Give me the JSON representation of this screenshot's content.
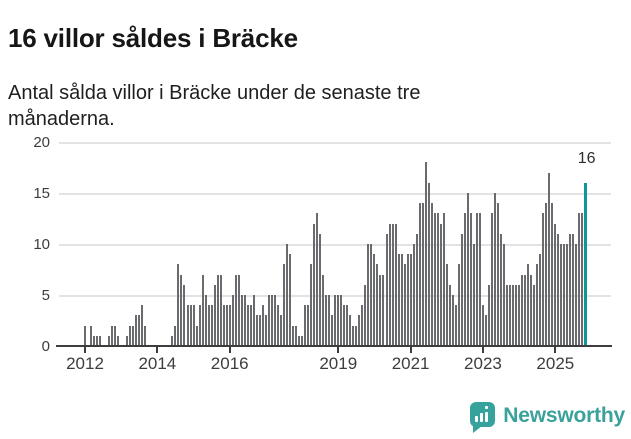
{
  "header": {
    "title": "16 villor såldes i Bräcke",
    "subtitle": "Antal sålda villor i Bräcke under de senaste tre månaderna."
  },
  "annotation": {
    "label": "16"
  },
  "logo": {
    "text": "Newsworthy",
    "icon": "newsworthy-speech-bubble-bar-chart-icon"
  },
  "colors": {
    "bar": "#6a6b6f",
    "highlight": "#0f9697",
    "grid": "#e3e3e3",
    "axis": "#3d3d3d",
    "title_text": "#161616",
    "logo_teal": "#3aa19b"
  },
  "chart_data": {
    "type": "bar",
    "title": "16 villor såldes i Bräcke",
    "subtitle": "Antal sålda villor i Bräcke under de senaste tre månaderna.",
    "unit": "sålda villor (rullande 3 månader)",
    "start_month": "2012-01",
    "frequency": "monthly",
    "values": [
      2,
      0,
      2,
      1,
      1,
      1,
      0,
      0,
      1,
      2,
      2,
      1,
      0,
      0,
      1,
      2,
      2,
      3,
      3,
      4,
      2,
      0,
      0,
      0,
      0,
      0,
      0,
      0,
      0,
      1,
      2,
      8,
      7,
      6,
      4,
      4,
      4,
      2,
      4,
      7,
      5,
      4,
      4,
      6,
      7,
      7,
      4,
      4,
      4,
      5,
      7,
      7,
      5,
      5,
      4,
      4,
      5,
      3,
      3,
      4,
      3,
      5,
      5,
      5,
      4,
      3,
      8,
      10,
      9,
      2,
      2,
      1,
      1,
      4,
      4,
      8,
      12,
      13,
      11,
      7,
      5,
      5,
      3,
      5,
      5,
      5,
      4,
      4,
      3,
      2,
      2,
      3,
      4,
      6,
      10,
      10,
      9,
      8,
      7,
      7,
      11,
      12,
      12,
      12,
      9,
      9,
      8,
      9,
      9,
      10,
      11,
      14,
      14,
      18,
      16,
      14,
      13,
      13,
      12,
      13,
      8,
      6,
      5,
      4,
      8,
      11,
      13,
      15,
      13,
      10,
      13,
      13,
      4,
      3,
      6,
      13,
      15,
      14,
      11,
      10,
      6,
      6,
      6,
      6,
      6,
      7,
      7,
      8,
      7,
      6,
      8,
      9,
      13,
      14,
      17,
      14,
      12,
      11,
      10,
      10,
      10,
      11,
      11,
      10,
      13,
      13,
      16
    ],
    "highlight_index": 166,
    "highlight_value": 16,
    "annotation_label": "16",
    "ylim": [
      0,
      20
    ],
    "yticks": [
      0,
      5,
      10,
      15,
      20
    ],
    "xticks": [
      {
        "label": "2012",
        "month_index": 0
      },
      {
        "label": "2014",
        "month_index": 24
      },
      {
        "label": "2016",
        "month_index": 48
      },
      {
        "label": "2019",
        "month_index": 84
      },
      {
        "label": "2021",
        "month_index": 108
      },
      {
        "label": "2023",
        "month_index": 132
      },
      {
        "label": "2025",
        "month_index": 156
      }
    ],
    "grid": true,
    "legend": false
  }
}
